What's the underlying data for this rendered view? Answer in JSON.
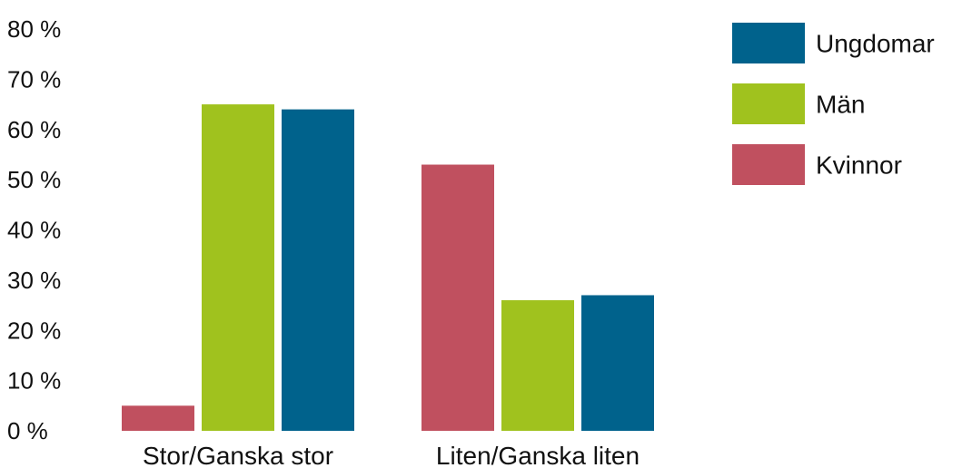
{
  "chart_data": {
    "type": "bar",
    "title": "",
    "xlabel": "",
    "ylabel": "",
    "categories": [
      "Stor/Ganska stor",
      "Liten/Ganska liten"
    ],
    "series": [
      {
        "name": "Kvinnor",
        "color": "#c0505f",
        "values": [
          5,
          53
        ]
      },
      {
        "name": "Män",
        "color": "#a0c21e",
        "values": [
          65,
          26
        ]
      },
      {
        "name": "Ungdomar",
        "color": "#00628c",
        "values": [
          64,
          27
        ]
      }
    ],
    "ylim": [
      0,
      80
    ],
    "yticks": [
      0,
      10,
      20,
      30,
      40,
      50,
      60,
      70,
      80
    ],
    "ytick_labels": [
      "0 %",
      "10 %",
      "20 %",
      "30 %",
      "40 %",
      "50 %",
      "60 %",
      "70 %",
      "80 %"
    ],
    "grid": false,
    "legend": {
      "placement": "top-right",
      "order": [
        "Ungdomar",
        "Män",
        "Kvinnor"
      ]
    }
  }
}
